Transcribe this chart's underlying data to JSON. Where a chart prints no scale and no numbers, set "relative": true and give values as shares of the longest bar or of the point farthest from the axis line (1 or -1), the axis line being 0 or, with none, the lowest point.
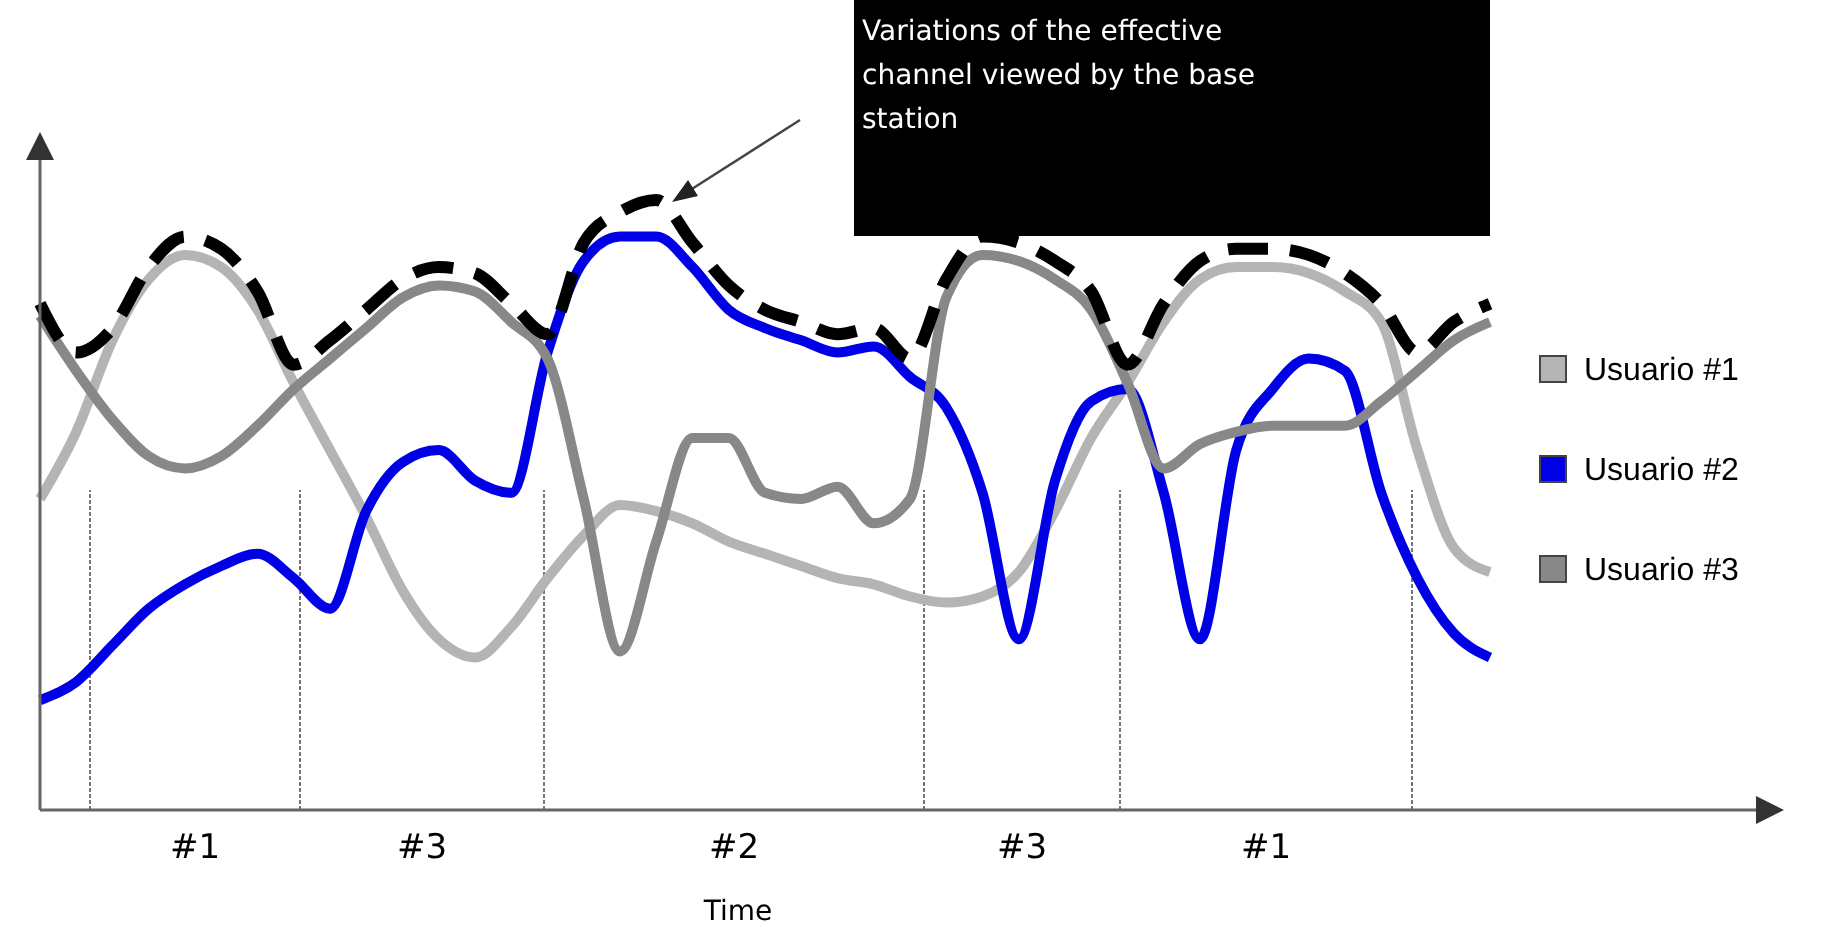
{
  "chart_data": {
    "type": "line",
    "relative": true,
    "xlabel": "Time",
    "legend": "right",
    "line_style": "solid",
    "marker": "none",
    "categories": [
      null,
      null,
      null,
      null,
      null,
      null,
      null,
      null,
      null,
      null,
      null,
      null,
      null,
      null,
      null,
      null,
      null,
      null,
      null,
      null,
      null,
      null,
      null,
      null,
      null,
      null,
      null,
      null,
      null,
      null,
      null,
      null,
      null,
      null,
      null,
      null,
      null,
      null,
      null,
      null,
      null
    ],
    "series": [
      {
        "name": "Usuario #1",
        "color": "#b4b4b4",
        "values": [
          0.51,
          0.62,
          0.77,
          0.87,
          0.91,
          0.89,
          0.82,
          0.7,
          0.59,
          0.48,
          0.36,
          0.28,
          0.25,
          0.3,
          0.38,
          0.45,
          0.5,
          0.49,
          0.47,
          0.44,
          0.42,
          0.4,
          0.38,
          0.37,
          0.35,
          0.34,
          0.35,
          0.39,
          0.49,
          0.61,
          0.7,
          0.8,
          0.87,
          0.89,
          0.89,
          0.88,
          0.85,
          0.8,
          0.59,
          0.43,
          0.39
        ]
      },
      {
        "name": "Usuario #2",
        "color": "#0000e6",
        "values": [
          0.18,
          0.21,
          0.27,
          0.33,
          0.37,
          0.4,
          0.42,
          0.38,
          0.33,
          0.49,
          0.57,
          0.59,
          0.54,
          0.52,
          0.75,
          0.9,
          0.94,
          0.94,
          0.89,
          0.82,
          0.79,
          0.77,
          0.75,
          0.76,
          0.71,
          0.66,
          0.52,
          0.28,
          0.54,
          0.67,
          0.69,
          0.52,
          0.28,
          0.59,
          0.69,
          0.74,
          0.72,
          0.52,
          0.38,
          0.29,
          0.25
        ]
      },
      {
        "name": "Usuario #3",
        "color": "#888888",
        "values": [
          0.81,
          0.72,
          0.64,
          0.58,
          0.56,
          0.58,
          0.63,
          0.69,
          0.74,
          0.79,
          0.84,
          0.86,
          0.85,
          0.8,
          0.74,
          0.51,
          0.26,
          0.44,
          0.61,
          0.61,
          0.52,
          0.51,
          0.53,
          0.47,
          0.51,
          0.84,
          0.91,
          0.9,
          0.87,
          0.82,
          0.7,
          0.56,
          0.6,
          0.62,
          0.63,
          0.63,
          0.63,
          0.67,
          0.72,
          0.77,
          0.8
        ]
      },
      {
        "color": "#000000",
        "line_style": "dashed",
        "values": [
          0.83,
          0.75,
          0.79,
          0.89,
          0.94,
          0.92,
          0.85,
          0.73,
          0.77,
          0.82,
          0.87,
          0.89,
          0.88,
          0.83,
          0.78,
          0.93,
          0.98,
          1,
          0.93,
          0.86,
          0.82,
          0.8,
          0.78,
          0.79,
          0.74,
          0.87,
          0.94,
          0.93,
          0.9,
          0.85,
          0.73,
          0.83,
          0.9,
          0.92,
          0.92,
          0.91,
          0.88,
          0.83,
          0.75,
          0.8,
          0.83
        ]
      }
    ],
    "annotations": [
      "Variations of the effective channel viewed by the base station",
      "#1",
      "#3",
      "#2",
      "#3",
      "#1"
    ]
  }
}
